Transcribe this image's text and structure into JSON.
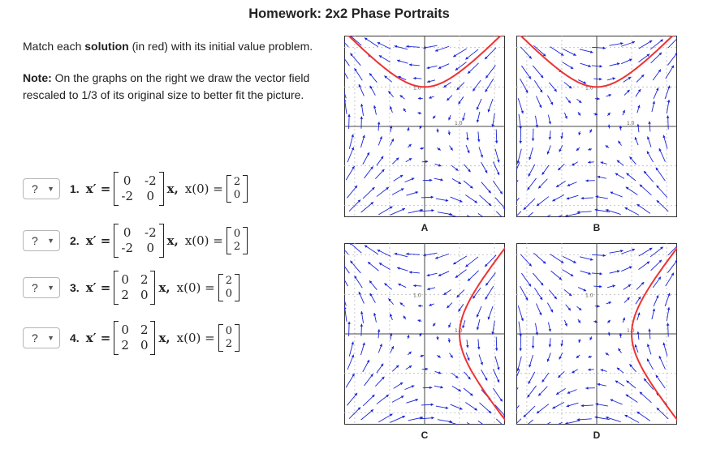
{
  "title": "Homework: 2x2 Phase Portraits",
  "intro": {
    "line1_pre": "Match each ",
    "line1_bold": "solution",
    "line1_post": " (in red) with its initial value problem.",
    "note_bold": "Note:",
    "note_text1": " On the graphs on the right we draw the vector field",
    "note_text2": "rescaled to 1/3 of its original size to better fit the picture."
  },
  "problems": [
    {
      "select": "?",
      "number": "1.",
      "matrix": [
        "0",
        "-2",
        "-2",
        "0"
      ],
      "ic": [
        "2",
        "0"
      ]
    },
    {
      "select": "?",
      "number": "2.",
      "matrix": [
        "0",
        "-2",
        "-2",
        "0"
      ],
      "ic": [
        "0",
        "2"
      ]
    },
    {
      "select": "?",
      "number": "3.",
      "matrix": [
        "0",
        "2",
        "2",
        "0"
      ],
      "ic": [
        "2",
        "0"
      ]
    },
    {
      "select": "?",
      "number": "4.",
      "matrix": [
        "0",
        "2",
        "2",
        "0"
      ],
      "ic": [
        "0",
        "2"
      ]
    }
  ],
  "math": {
    "lhs": "x′ =",
    "x": "x,",
    "ic_lhs": "x(0) ="
  },
  "graphs": [
    {
      "label": "A",
      "matrix": [
        [
          0,
          -2
        ],
        [
          -2,
          0
        ]
      ],
      "curve": "upper-parabola",
      "tick": "1.0"
    },
    {
      "label": "B",
      "matrix": [
        [
          0,
          2
        ],
        [
          2,
          0
        ]
      ],
      "curve": "upper-parabola",
      "tick": "1.0"
    },
    {
      "label": "C",
      "matrix": [
        [
          0,
          -2
        ],
        [
          -2,
          0
        ]
      ],
      "curve": "right-hyperbola",
      "tick": "1.0"
    },
    {
      "label": "D",
      "matrix": [
        [
          0,
          2
        ],
        [
          2,
          0
        ]
      ],
      "curve": "right-hyperbola",
      "tick": "1.0"
    }
  ],
  "colors": {
    "arrow": "#1a23d6",
    "curve": "#ee3333",
    "grid": "#999999"
  }
}
